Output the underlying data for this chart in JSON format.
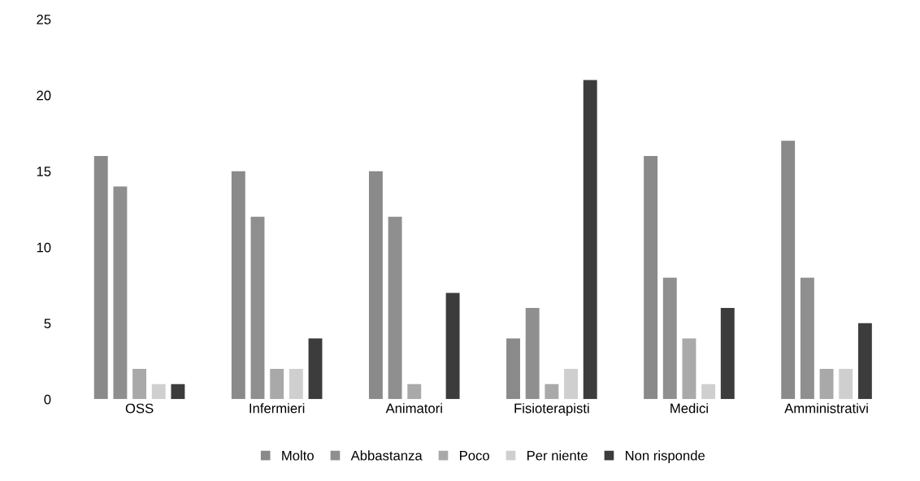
{
  "chart_data": {
    "type": "bar",
    "categories": [
      "OSS",
      "Infermieri",
      "Animatori",
      "Fisioterapisti",
      "Medici",
      "Amministrativi"
    ],
    "series": [
      {
        "name": "Molto",
        "color": "#8a8a8a",
        "values": [
          16,
          15,
          15,
          4,
          16,
          17
        ]
      },
      {
        "name": "Abbastanza",
        "color": "#8f8f8f",
        "values": [
          14,
          12,
          12,
          6,
          8,
          8
        ]
      },
      {
        "name": "Poco",
        "color": "#a9a9a9",
        "values": [
          2,
          2,
          1,
          1,
          4,
          2
        ]
      },
      {
        "name": "Per niente",
        "color": "#cfcfcf",
        "values": [
          1,
          2,
          0,
          2,
          1,
          2
        ]
      },
      {
        "name": "Non risponde",
        "color": "#3c3c3c",
        "values": [
          1,
          4,
          7,
          21,
          6,
          5
        ]
      }
    ],
    "ylim": [
      0,
      25
    ],
    "yticks": [
      0,
      5,
      10,
      15,
      20,
      25
    ],
    "grid": false,
    "legend": "bottom"
  }
}
